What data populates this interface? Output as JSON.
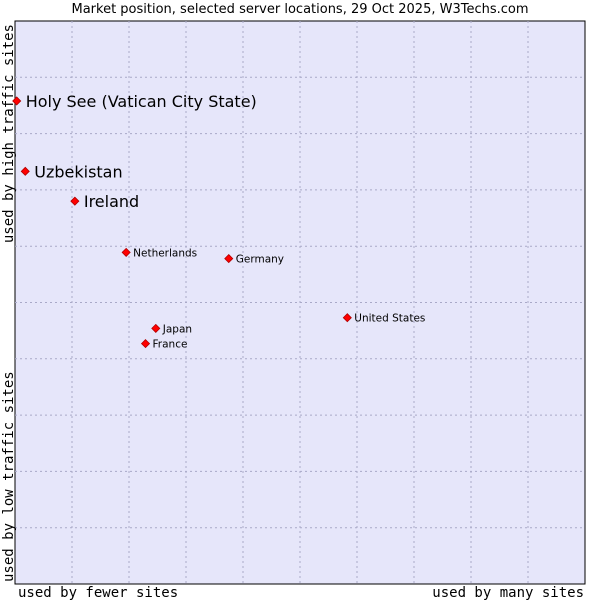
{
  "chart_data": {
    "type": "scatter",
    "title": "Market position, selected server locations, 29 Oct 2025, W3Techs.com",
    "xlabel_left": "used by fewer sites",
    "xlabel_right": "used by many sites",
    "ylabel_bottom": "used by low traffic sites",
    "ylabel_top": "used by high traffic sites",
    "xlim": [
      0,
      100
    ],
    "ylim": [
      0,
      100
    ],
    "grid": true,
    "points": [
      {
        "name": "Holy See (Vatican City State)",
        "x": 0.3,
        "y": 85.8,
        "emphasis": true
      },
      {
        "name": "Uzbekistan",
        "x": 1.8,
        "y": 73.3,
        "emphasis": true
      },
      {
        "name": "Ireland",
        "x": 10.5,
        "y": 68.0,
        "emphasis": true
      },
      {
        "name": "Netherlands",
        "x": 19.5,
        "y": 58.9,
        "emphasis": false
      },
      {
        "name": "Germany",
        "x": 37.5,
        "y": 57.8,
        "emphasis": false
      },
      {
        "name": "United States",
        "x": 58.3,
        "y": 47.3,
        "emphasis": false
      },
      {
        "name": "Japan",
        "x": 24.7,
        "y": 45.4,
        "emphasis": false
      },
      {
        "name": "France",
        "x": 22.9,
        "y": 42.7,
        "emphasis": false
      }
    ]
  },
  "colors": {
    "plot_bg": "#e6e6fa",
    "grid": "#a9a9c8",
    "marker": "#ff0000",
    "marker_edge": "#b00000"
  }
}
